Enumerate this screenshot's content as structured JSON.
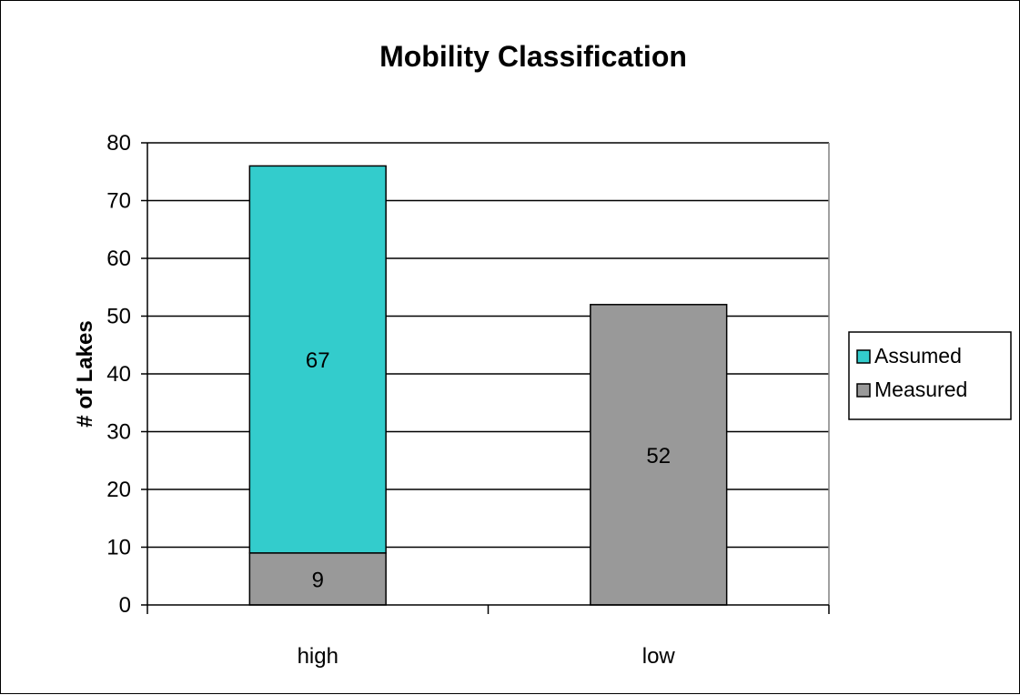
{
  "chart_data": {
    "type": "bar",
    "stacked": true,
    "title": "Mobility Classification",
    "xlabel": "",
    "ylabel": "# of Lakes",
    "categories": [
      "high",
      "low"
    ],
    "ylim": [
      0,
      80
    ],
    "yticks": [
      0,
      10,
      20,
      30,
      40,
      50,
      60,
      70,
      80
    ],
    "grid": true,
    "legend_position": "right",
    "series": [
      {
        "name": "Measured",
        "values": [
          9,
          52
        ],
        "labels": [
          "9",
          "52"
        ],
        "color": "#999999"
      },
      {
        "name": "Assumed",
        "values": [
          67,
          0
        ],
        "labels": [
          "67",
          ""
        ],
        "color": "#33CCCC"
      }
    ],
    "legend_order": [
      "Assumed",
      "Measured"
    ]
  }
}
